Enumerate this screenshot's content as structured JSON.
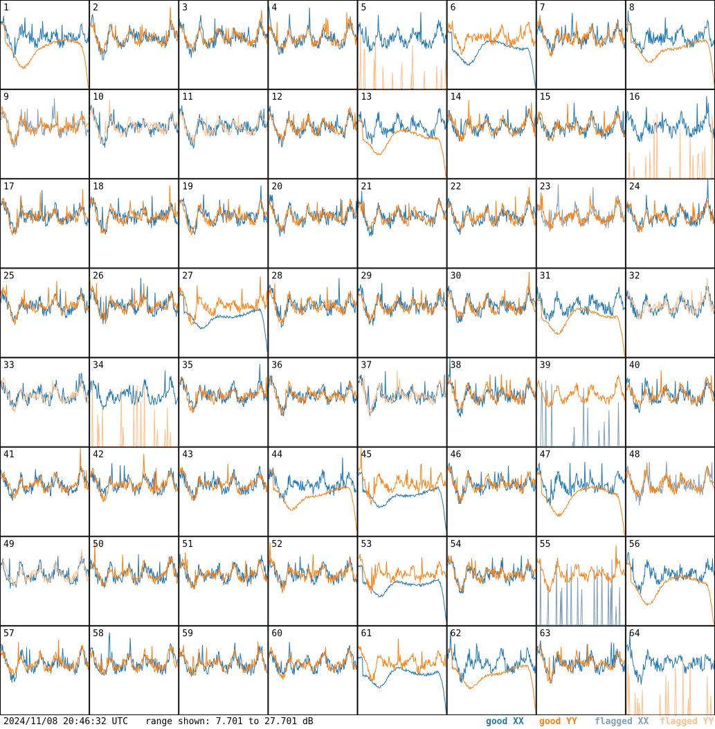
{
  "chart_data": {
    "type": "line",
    "layout": "8x8 small multiples",
    "panels": [
      "1",
      "2",
      "3",
      "4",
      "5",
      "6",
      "7",
      "8",
      "9",
      "10",
      "11",
      "12",
      "13",
      "14",
      "15",
      "16",
      "17",
      "18",
      "19",
      "20",
      "21",
      "22",
      "23",
      "24",
      "25",
      "26",
      "27",
      "28",
      "29",
      "30",
      "31",
      "32",
      "33",
      "34",
      "35",
      "36",
      "37",
      "38",
      "39",
      "40",
      "41",
      "42",
      "43",
      "44",
      "45",
      "46",
      "47",
      "48",
      "49",
      "50",
      "51",
      "52",
      "53",
      "54",
      "55",
      "56",
      "57",
      "58",
      "59",
      "60",
      "61",
      "62",
      "63",
      "64"
    ],
    "ylim": [
      7.701,
      27.701
    ],
    "y_unit": "dB",
    "series": [
      {
        "name": "good XX",
        "color": "#1f77b4"
      },
      {
        "name": "good YY",
        "color": "#ff7f0e"
      },
      {
        "name": "flagged XX",
        "color": "#7f9fb8"
      },
      {
        "name": "flagged YY",
        "color": "#ffc08c"
      }
    ],
    "panel_states": {
      "flagged_xx": [
        9,
        23,
        39,
        48,
        55
      ],
      "flagged_yy": [
        5,
        10,
        11,
        16,
        32,
        33,
        34,
        37,
        49,
        64
      ],
      "xx_drop": [
        6,
        45,
        53,
        61,
        27
      ],
      "yy_drop": [
        1,
        8,
        13,
        31,
        44,
        47,
        62,
        56
      ]
    }
  },
  "footer": {
    "timestamp": "2024/11/08 20:46:32 UTC",
    "range": "range shown: 7.701 to 27.701 dB",
    "legend": {
      "good_xx": "good XX",
      "good_yy": "good YY",
      "flagged_xx": "flagged XX",
      "flagged_yy": "flagged YY"
    }
  }
}
